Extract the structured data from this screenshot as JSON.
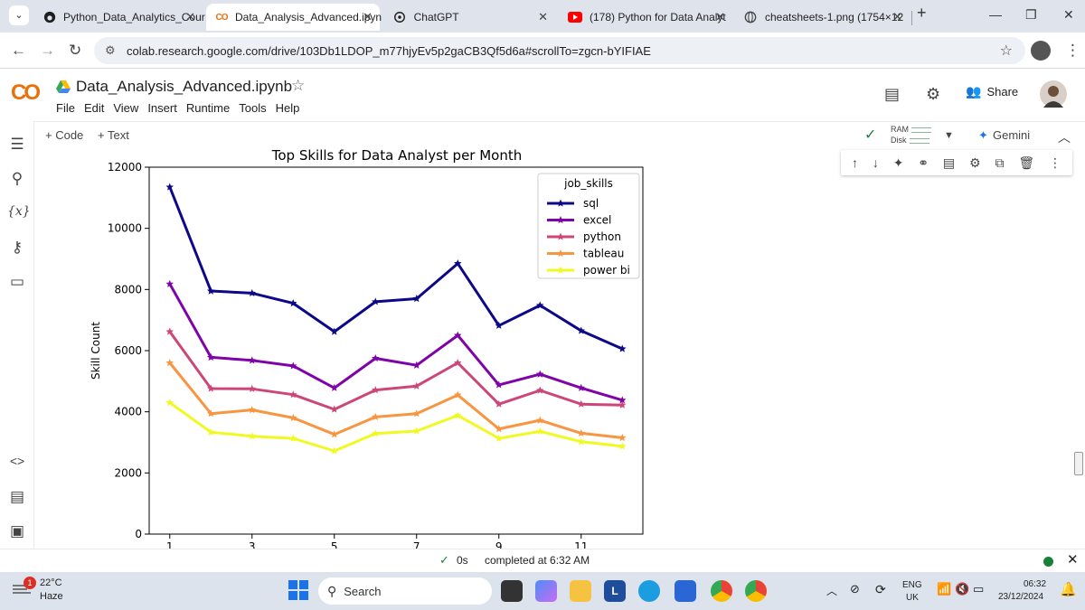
{
  "browser": {
    "tabs": [
      {
        "title": "Python_Data_Analytics_Cour",
        "icon": "github-icon"
      },
      {
        "title": "Data_Analysis_Advanced.ipyn",
        "icon": "colab-icon",
        "active": true
      },
      {
        "title": "ChatGPT",
        "icon": "chatgpt-icon"
      },
      {
        "title": "(178) Python for Data Analyt",
        "icon": "youtube-icon"
      },
      {
        "title": "cheatsheets-1.png (1754×12",
        "icon": "globe-icon"
      }
    ],
    "url": "colab.research.google.com/drive/103Db1LDOP_m77hjyEv5p2gaCB3Qf5d6a#scrollTo=zgcn-bYIFIAE"
  },
  "colab": {
    "logo": "CO",
    "notebook_title": "Data_Analysis_Advanced.ipynb",
    "menu": [
      "File",
      "Edit",
      "View",
      "Insert",
      "Runtime",
      "Tools",
      "Help"
    ],
    "share_label": "Share",
    "toolbar": {
      "code_label": "+ Code",
      "text_label": "+ Text",
      "ram_label": "RAM",
      "disk_label": "Disk",
      "gemini_label": "Gemini"
    },
    "status": {
      "time": "0s",
      "completed": "completed at 6:32 AM"
    }
  },
  "chart_data": {
    "type": "line",
    "title": "Top Skills for Data Analyst per Month",
    "xlabel": "",
    "ylabel": "Skill Count",
    "x": [
      1,
      2,
      3,
      4,
      5,
      6,
      7,
      8,
      9,
      10,
      11,
      12
    ],
    "xticks": [
      "1",
      "3",
      "5",
      "7",
      "9",
      "11"
    ],
    "yticks": [
      "0",
      "2000",
      "4000",
      "6000",
      "8000",
      "10000",
      "12000"
    ],
    "ylim": [
      0,
      12000
    ],
    "xlim": [
      0.5,
      12.5
    ],
    "legend_title": "job_skills",
    "legend_position": "top-right",
    "marker": "star",
    "series": [
      {
        "name": "sql",
        "color": "#0d0887",
        "values": [
          11350,
          7950,
          7880,
          7550,
          6620,
          7600,
          7700,
          8850,
          6820,
          7480,
          6650,
          6060
        ]
      },
      {
        "name": "excel",
        "color": "#7e03a8",
        "values": [
          8180,
          5780,
          5680,
          5500,
          4780,
          5750,
          5520,
          6500,
          4880,
          5230,
          4780,
          4380
        ]
      },
      {
        "name": "python",
        "color": "#cc4778",
        "values": [
          6620,
          4760,
          4750,
          4560,
          4080,
          4710,
          4840,
          5600,
          4250,
          4700,
          4250,
          4220
        ]
      },
      {
        "name": "tableau",
        "color": "#f89540",
        "values": [
          5600,
          3940,
          4060,
          3800,
          3260,
          3830,
          3940,
          4550,
          3440,
          3720,
          3300,
          3150
        ]
      },
      {
        "name": "power bi",
        "color": "#f0f921",
        "values": [
          4300,
          3330,
          3200,
          3130,
          2720,
          3290,
          3370,
          3880,
          3130,
          3360,
          3020,
          2870
        ]
      }
    ]
  },
  "taskbar": {
    "weather_temp": "22°C",
    "weather_desc": "Haze",
    "weather_badge": "1",
    "search_label": "Search",
    "lang_top": "ENG",
    "lang_bottom": "UK",
    "time": "06:32",
    "date": "23/12/2024"
  }
}
